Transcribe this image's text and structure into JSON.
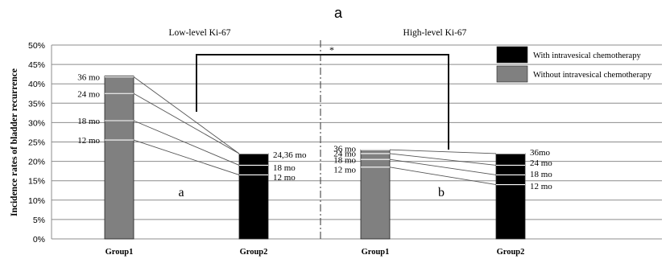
{
  "chart_data": {
    "type": "bar",
    "title": "a",
    "ylabel": "Incidence rates of bladder recurrence",
    "ylim": [
      0,
      50
    ],
    "yticks": [
      "0%",
      "5%",
      "10%",
      "15%",
      "20%",
      "25%",
      "30%",
      "35%",
      "40%",
      "45%",
      "50%"
    ],
    "grid": true,
    "legend_position": "top-right",
    "significance_marker": "*",
    "panels": [
      {
        "name": "Low-level Ki-67",
        "panel_letter": "a",
        "groups": [
          {
            "name": "Group1",
            "series": "Without intravesical chemotherapy",
            "value": 42,
            "timepoints": [
              {
                "label": "12 mo",
                "value": 25.5
              },
              {
                "label": "18 mo",
                "value": 30.5
              },
              {
                "label": "24 mo",
                "value": 37.5
              },
              {
                "label": "36 mo",
                "value": 41.8
              }
            ]
          },
          {
            "name": "Group2",
            "series": "With intravesical chemotherapy",
            "value": 22,
            "timepoints": [
              {
                "label": "12 mo",
                "value": 16.5
              },
              {
                "label": "18 mo",
                "value": 19
              },
              {
                "label": "24,36 mo",
                "value": 22
              }
            ]
          }
        ],
        "connections": [
          {
            "from": 25.5,
            "to": 16.5
          },
          {
            "from": 30.5,
            "to": 19
          },
          {
            "from": 37.5,
            "to": 22
          },
          {
            "from": 41.8,
            "to": 22
          }
        ]
      },
      {
        "name": "High-level Ki-67",
        "panel_letter": "b",
        "groups": [
          {
            "name": "Group1",
            "series": "Without intravesical chemotherapy",
            "value": 23,
            "timepoints": [
              {
                "label": "12 mo",
                "value": 18.5
              },
              {
                "label": "18 mo",
                "value": 20.5
              },
              {
                "label": "24 mo",
                "value": 22
              },
              {
                "label": "36 mo",
                "value": 23
              }
            ]
          },
          {
            "name": "Group2",
            "series": "With intravesical chemotherapy",
            "value": 22,
            "timepoints": [
              {
                "label": "12 mo",
                "value": 14
              },
              {
                "label": "18 mo",
                "value": 16.5
              },
              {
                "label": "24 mo",
                "value": 19
              },
              {
                "label": "36mo",
                "value": 22
              }
            ]
          }
        ],
        "connections": [
          {
            "from": 18.5,
            "to": 14
          },
          {
            "from": 20.5,
            "to": 16.5
          },
          {
            "from": 22,
            "to": 19
          },
          {
            "from": 23,
            "to": 22
          }
        ]
      }
    ],
    "legend": [
      {
        "label": "With intravesical chemotherapy",
        "color": "#000000"
      },
      {
        "label": "Without intravesical chemotherapy",
        "color": "#808080"
      }
    ]
  },
  "colors": {
    "with": "#000000",
    "without": "#808080",
    "grid": "#8c8c8c",
    "divider": "#444444",
    "bracket": "#111111"
  }
}
